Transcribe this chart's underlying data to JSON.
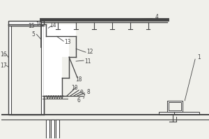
{
  "bg_color": "#f0f0eb",
  "line_color": "#444444",
  "lw": 0.8,
  "fig_width": 3.0,
  "fig_height": 2.0,
  "dpi": 100
}
